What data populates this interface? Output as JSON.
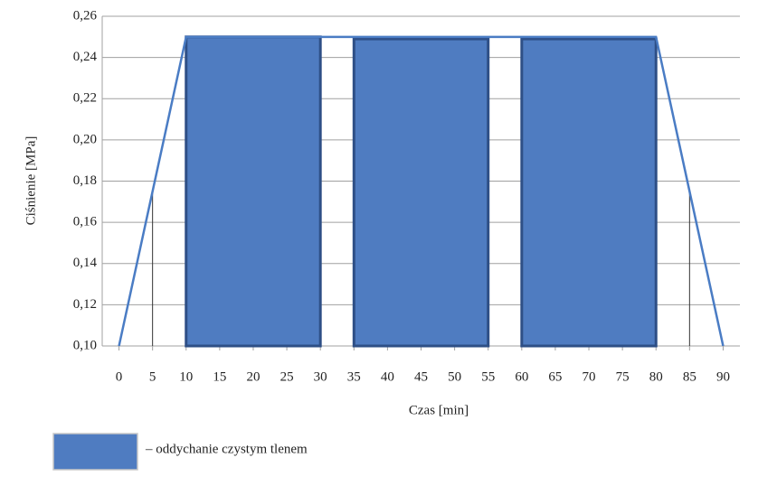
{
  "chart_data": {
    "type": "line",
    "x_label": "Czas [min]",
    "y_label": "Ciśnienie [MPa]",
    "xlim": [
      -2.5,
      92.5
    ],
    "ylim": [
      0.1,
      0.26
    ],
    "xticks": [
      0,
      5,
      10,
      15,
      20,
      25,
      30,
      35,
      40,
      45,
      50,
      55,
      60,
      65,
      70,
      75,
      80,
      85,
      90
    ],
    "yticks": [
      {
        "value": 0.1,
        "label": "0,10"
      },
      {
        "value": 0.12,
        "label": "0,12"
      },
      {
        "value": 0.14,
        "label": "0,14"
      },
      {
        "value": 0.16,
        "label": "0,16"
      },
      {
        "value": 0.18,
        "label": "0,18"
      },
      {
        "value": 0.2,
        "label": "0,20"
      },
      {
        "value": 0.22,
        "label": "0,22"
      },
      {
        "value": 0.24,
        "label": "0,24"
      },
      {
        "value": 0.26,
        "label": "0,26"
      }
    ],
    "grid": true,
    "series": [
      {
        "color": "#4a7cc4",
        "x": [
          0,
          10,
          80,
          90
        ],
        "values": [
          0.1,
          0.25,
          0.25,
          0.1
        ]
      }
    ],
    "blocks": {
      "name": "– oddychanie czystym tlenem",
      "color": "#4f7cc1",
      "edge": "#2e4f86",
      "items": [
        {
          "x": [
            10,
            30
          ],
          "value": 0.25
        },
        {
          "x": [
            35,
            55
          ],
          "value": 0.249
        },
        {
          "x": [
            60,
            80
          ],
          "value": 0.249
        }
      ]
    },
    "markers": [
      {
        "x": 5,
        "value": 0.175
      },
      {
        "x": 85,
        "value": 0.175
      }
    ]
  }
}
